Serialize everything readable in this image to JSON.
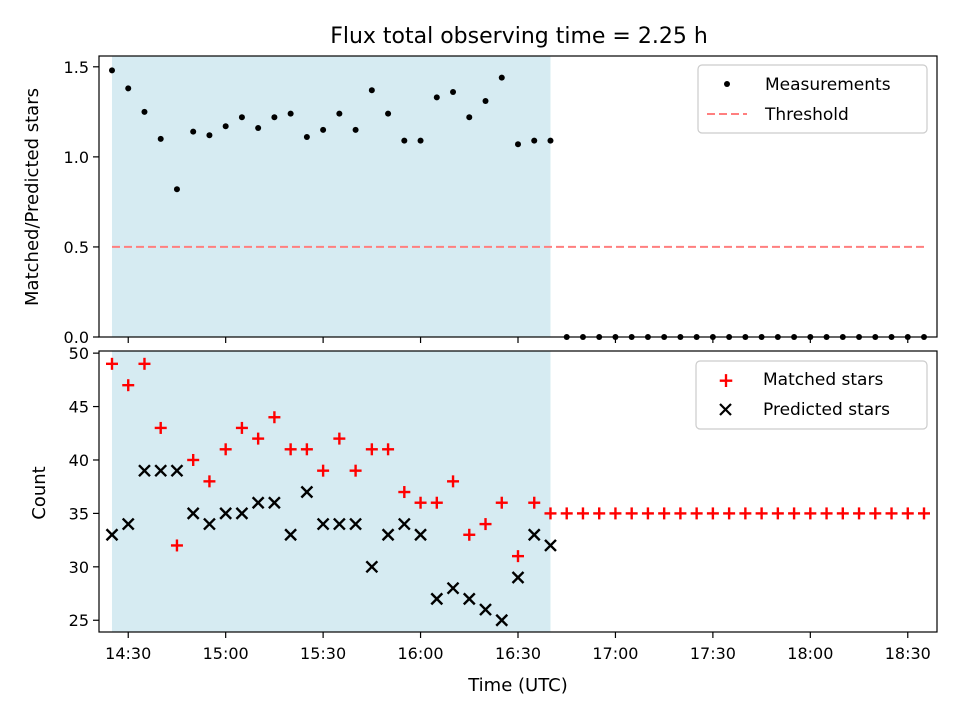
{
  "colors": {
    "shade": "#add8e6",
    "measurement": "#000000",
    "threshold": "#ff7f7f",
    "matched": "#ff0000",
    "predicted": "#000000"
  },
  "chart_data": [
    {
      "type": "scatter",
      "title": "Flux total observing time = 2.25 h",
      "ylabel": "Matched/Predicted stars",
      "xlabel": "",
      "xlim": [
        "14:21",
        "18:39"
      ],
      "ylim": [
        0,
        1.56
      ],
      "yticks": [
        "0.0",
        "0.5",
        "1.0",
        "1.5"
      ],
      "xticks": [
        "14:30",
        "15:00",
        "15:30",
        "16:00",
        "16:30",
        "17:00",
        "17:30",
        "18:00",
        "18:30"
      ],
      "shaded_interval": [
        "14:25",
        "16:40"
      ],
      "legend": [
        "Measurements",
        "Threshold"
      ],
      "threshold": {
        "value": 0.5,
        "x_range": [
          "14:25",
          "18:35"
        ]
      },
      "series": [
        {
          "name": "Measurements",
          "x": [
            "14:25",
            "14:30",
            "14:35",
            "14:40",
            "14:45",
            "14:50",
            "14:55",
            "15:00",
            "15:05",
            "15:10",
            "15:15",
            "15:20",
            "15:25",
            "15:30",
            "15:35",
            "15:40",
            "15:45",
            "15:50",
            "15:55",
            "16:00",
            "16:05",
            "16:10",
            "16:15",
            "16:20",
            "16:25",
            "16:30",
            "16:35",
            "16:40",
            "16:45",
            "16:50",
            "16:55",
            "17:00",
            "17:05",
            "17:10",
            "17:15",
            "17:20",
            "17:25",
            "17:30",
            "17:35",
            "17:40",
            "17:45",
            "17:50",
            "17:55",
            "18:00",
            "18:05",
            "18:10",
            "18:15",
            "18:20",
            "18:25",
            "18:30",
            "18:35"
          ],
          "values": [
            1.48,
            1.38,
            1.25,
            1.1,
            0.82,
            1.14,
            1.12,
            1.17,
            1.22,
            1.16,
            1.22,
            1.24,
            1.11,
            1.15,
            1.24,
            1.15,
            1.37,
            1.24,
            1.09,
            1.09,
            1.33,
            1.36,
            1.22,
            1.31,
            1.44,
            1.07,
            1.09,
            1.09,
            0,
            0,
            0,
            0,
            0,
            0,
            0,
            0,
            0,
            0,
            0,
            0,
            0,
            0,
            0,
            0,
            0,
            0,
            0,
            0,
            0,
            0,
            0
          ]
        }
      ]
    },
    {
      "type": "scatter",
      "title": "",
      "ylabel": "Count",
      "xlabel": "Time (UTC)",
      "xlim": [
        "14:21",
        "18:39"
      ],
      "ylim": [
        23.9,
        50.2
      ],
      "yticks": [
        "25",
        "30",
        "35",
        "40",
        "45",
        "50"
      ],
      "xticks": [
        "14:30",
        "15:00",
        "15:30",
        "16:00",
        "16:30",
        "17:00",
        "17:30",
        "18:00",
        "18:30"
      ],
      "shaded_interval": [
        "14:25",
        "16:40"
      ],
      "legend": [
        "Matched stars",
        "Predicted stars"
      ],
      "series": [
        {
          "name": "Matched stars",
          "x": [
            "14:25",
            "14:30",
            "14:35",
            "14:40",
            "14:45",
            "14:50",
            "14:55",
            "15:00",
            "15:05",
            "15:10",
            "15:15",
            "15:20",
            "15:25",
            "15:30",
            "15:35",
            "15:40",
            "15:45",
            "15:50",
            "15:55",
            "16:00",
            "16:05",
            "16:10",
            "16:15",
            "16:20",
            "16:25",
            "16:30",
            "16:35",
            "16:40",
            "16:45",
            "16:50",
            "16:55",
            "17:00",
            "17:05",
            "17:10",
            "17:15",
            "17:20",
            "17:25",
            "17:30",
            "17:35",
            "17:40",
            "17:45",
            "17:50",
            "17:55",
            "18:00",
            "18:05",
            "18:10",
            "18:15",
            "18:20",
            "18:25",
            "18:30",
            "18:35"
          ],
          "values": [
            49,
            47,
            49,
            43,
            32,
            40,
            38,
            41,
            43,
            42,
            44,
            41,
            41,
            39,
            42,
            39,
            41,
            41,
            37,
            36,
            36,
            38,
            33,
            34,
            36,
            31,
            36,
            35,
            35,
            35,
            35,
            35,
            35,
            35,
            35,
            35,
            35,
            35,
            35,
            35,
            35,
            35,
            35,
            35,
            35,
            35,
            35,
            35,
            35,
            35,
            35
          ]
        },
        {
          "name": "Predicted stars",
          "x": [
            "14:25",
            "14:30",
            "14:35",
            "14:40",
            "14:45",
            "14:50",
            "14:55",
            "15:00",
            "15:05",
            "15:10",
            "15:15",
            "15:20",
            "15:25",
            "15:30",
            "15:35",
            "15:40",
            "15:45",
            "15:50",
            "15:55",
            "16:00",
            "16:05",
            "16:10",
            "16:15",
            "16:20",
            "16:25",
            "16:30",
            "16:35",
            "16:40"
          ],
          "values": [
            33,
            34,
            39,
            39,
            39,
            35,
            34,
            35,
            35,
            36,
            36,
            33,
            37,
            34,
            34,
            34,
            30,
            33,
            34,
            33,
            27,
            28,
            27,
            26,
            25,
            29,
            33,
            32
          ]
        }
      ]
    }
  ]
}
